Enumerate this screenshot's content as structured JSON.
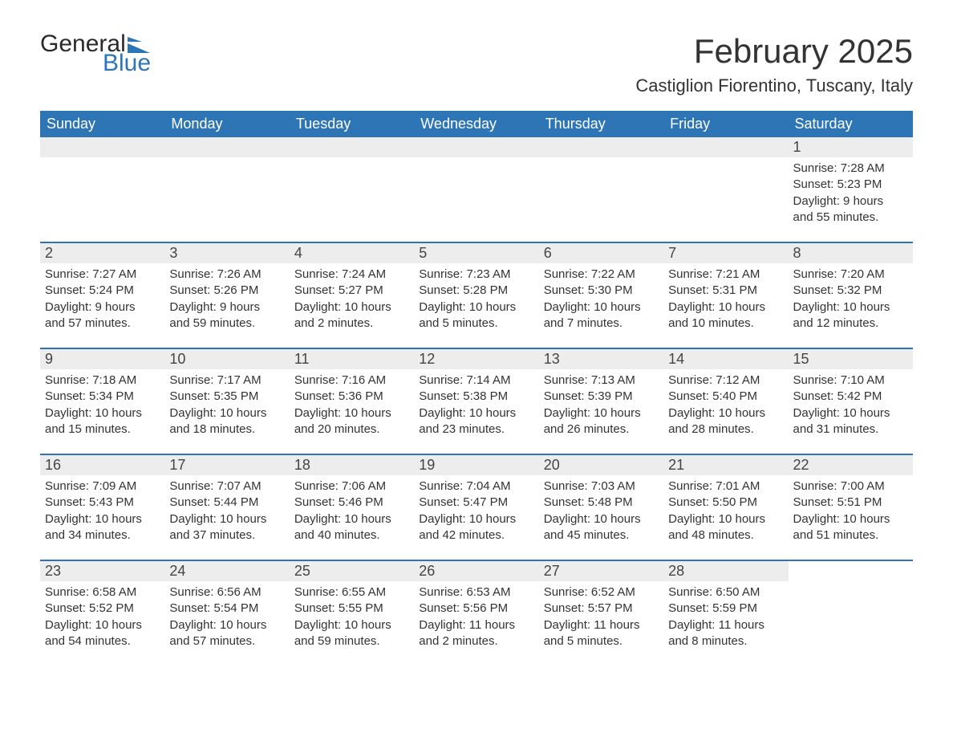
{
  "logo": {
    "word1": "General",
    "word2": "Blue",
    "accent_color": "#2e75b6"
  },
  "title": "February 2025",
  "location": "Castiglion Fiorentino, Tuscany, Italy",
  "colors": {
    "header_bg": "#2e75b6",
    "header_text": "#ffffff",
    "daynum_bg": "#ededed",
    "text": "#333333",
    "rule": "#2e75b6",
    "page_bg": "#ffffff"
  },
  "typography": {
    "title_fontsize": 42,
    "location_fontsize": 22,
    "header_fontsize": 18,
    "body_fontsize": 15
  },
  "day_names": [
    "Sunday",
    "Monday",
    "Tuesday",
    "Wednesday",
    "Thursday",
    "Friday",
    "Saturday"
  ],
  "first_day_column": 6,
  "days_in_month": 28,
  "days": [
    {
      "n": 1,
      "sunrise": "7:28 AM",
      "sunset": "5:23 PM",
      "dl_h": 9,
      "dl_m": 55
    },
    {
      "n": 2,
      "sunrise": "7:27 AM",
      "sunset": "5:24 PM",
      "dl_h": 9,
      "dl_m": 57
    },
    {
      "n": 3,
      "sunrise": "7:26 AM",
      "sunset": "5:26 PM",
      "dl_h": 9,
      "dl_m": 59
    },
    {
      "n": 4,
      "sunrise": "7:24 AM",
      "sunset": "5:27 PM",
      "dl_h": 10,
      "dl_m": 2
    },
    {
      "n": 5,
      "sunrise": "7:23 AM",
      "sunset": "5:28 PM",
      "dl_h": 10,
      "dl_m": 5
    },
    {
      "n": 6,
      "sunrise": "7:22 AM",
      "sunset": "5:30 PM",
      "dl_h": 10,
      "dl_m": 7
    },
    {
      "n": 7,
      "sunrise": "7:21 AM",
      "sunset": "5:31 PM",
      "dl_h": 10,
      "dl_m": 10
    },
    {
      "n": 8,
      "sunrise": "7:20 AM",
      "sunset": "5:32 PM",
      "dl_h": 10,
      "dl_m": 12
    },
    {
      "n": 9,
      "sunrise": "7:18 AM",
      "sunset": "5:34 PM",
      "dl_h": 10,
      "dl_m": 15
    },
    {
      "n": 10,
      "sunrise": "7:17 AM",
      "sunset": "5:35 PM",
      "dl_h": 10,
      "dl_m": 18
    },
    {
      "n": 11,
      "sunrise": "7:16 AM",
      "sunset": "5:36 PM",
      "dl_h": 10,
      "dl_m": 20
    },
    {
      "n": 12,
      "sunrise": "7:14 AM",
      "sunset": "5:38 PM",
      "dl_h": 10,
      "dl_m": 23
    },
    {
      "n": 13,
      "sunrise": "7:13 AM",
      "sunset": "5:39 PM",
      "dl_h": 10,
      "dl_m": 26
    },
    {
      "n": 14,
      "sunrise": "7:12 AM",
      "sunset": "5:40 PM",
      "dl_h": 10,
      "dl_m": 28
    },
    {
      "n": 15,
      "sunrise": "7:10 AM",
      "sunset": "5:42 PM",
      "dl_h": 10,
      "dl_m": 31
    },
    {
      "n": 16,
      "sunrise": "7:09 AM",
      "sunset": "5:43 PM",
      "dl_h": 10,
      "dl_m": 34
    },
    {
      "n": 17,
      "sunrise": "7:07 AM",
      "sunset": "5:44 PM",
      "dl_h": 10,
      "dl_m": 37
    },
    {
      "n": 18,
      "sunrise": "7:06 AM",
      "sunset": "5:46 PM",
      "dl_h": 10,
      "dl_m": 40
    },
    {
      "n": 19,
      "sunrise": "7:04 AM",
      "sunset": "5:47 PM",
      "dl_h": 10,
      "dl_m": 42
    },
    {
      "n": 20,
      "sunrise": "7:03 AM",
      "sunset": "5:48 PM",
      "dl_h": 10,
      "dl_m": 45
    },
    {
      "n": 21,
      "sunrise": "7:01 AM",
      "sunset": "5:50 PM",
      "dl_h": 10,
      "dl_m": 48
    },
    {
      "n": 22,
      "sunrise": "7:00 AM",
      "sunset": "5:51 PM",
      "dl_h": 10,
      "dl_m": 51
    },
    {
      "n": 23,
      "sunrise": "6:58 AM",
      "sunset": "5:52 PM",
      "dl_h": 10,
      "dl_m": 54
    },
    {
      "n": 24,
      "sunrise": "6:56 AM",
      "sunset": "5:54 PM",
      "dl_h": 10,
      "dl_m": 57
    },
    {
      "n": 25,
      "sunrise": "6:55 AM",
      "sunset": "5:55 PM",
      "dl_h": 10,
      "dl_m": 59
    },
    {
      "n": 26,
      "sunrise": "6:53 AM",
      "sunset": "5:56 PM",
      "dl_h": 11,
      "dl_m": 2
    },
    {
      "n": 27,
      "sunrise": "6:52 AM",
      "sunset": "5:57 PM",
      "dl_h": 11,
      "dl_m": 5
    },
    {
      "n": 28,
      "sunrise": "6:50 AM",
      "sunset": "5:59 PM",
      "dl_h": 11,
      "dl_m": 8
    }
  ],
  "labels": {
    "sunrise": "Sunrise:",
    "sunset": "Sunset:",
    "daylight": "Daylight:",
    "hours": "hours",
    "and": "and",
    "minutes": "minutes."
  }
}
